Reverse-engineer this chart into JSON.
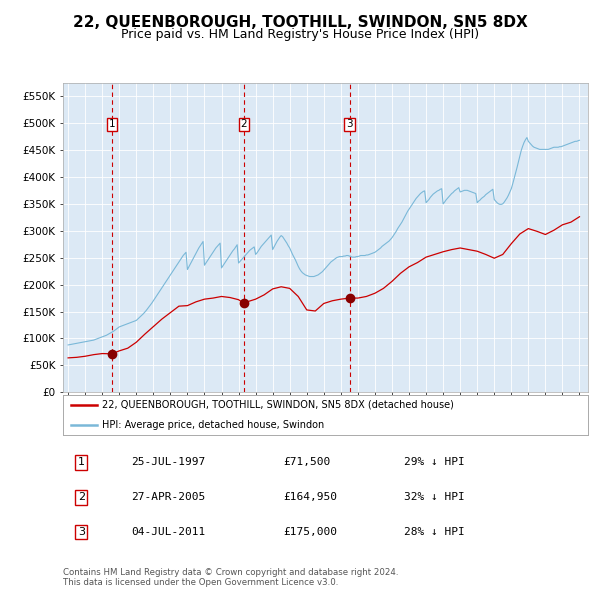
{
  "title": "22, QUEENBOROUGH, TOOTHILL, SWINDON, SN5 8DX",
  "subtitle": "Price paid vs. HM Land Registry's House Price Index (HPI)",
  "title_fontsize": 11,
  "subtitle_fontsize": 9,
  "bg_color": "#dce9f5",
  "fig_bg_color": "#ffffff",
  "ylim": [
    0,
    575000
  ],
  "yticks": [
    0,
    50000,
    100000,
    150000,
    200000,
    250000,
    300000,
    350000,
    400000,
    450000,
    500000,
    550000
  ],
  "ytick_labels": [
    "£0",
    "£50K",
    "£100K",
    "£150K",
    "£200K",
    "£250K",
    "£300K",
    "£350K",
    "£400K",
    "£450K",
    "£500K",
    "£550K"
  ],
  "xlim_start": 1994.7,
  "xlim_end": 2025.5,
  "xticks": [
    1995,
    1996,
    1997,
    1998,
    1999,
    2000,
    2001,
    2002,
    2003,
    2004,
    2005,
    2006,
    2007,
    2008,
    2009,
    2010,
    2011,
    2012,
    2013,
    2014,
    2015,
    2016,
    2017,
    2018,
    2019,
    2020,
    2021,
    2022,
    2023,
    2024,
    2025
  ],
  "hpi_color": "#7ab8d8",
  "price_color": "#cc0000",
  "marker_color": "#880000",
  "dashed_color": "#cc0000",
  "grid_color": "#ffffff",
  "annotation_box_color": "#cc0000",
  "sale_dates_decimal": [
    1997.56,
    2005.32,
    2011.51
  ],
  "sale_prices": [
    71500,
    164950,
    175000
  ],
  "sale_labels": [
    "1",
    "2",
    "3"
  ],
  "legend_label_price": "22, QUEENBOROUGH, TOOTHILL, SWINDON, SN5 8DX (detached house)",
  "legend_label_hpi": "HPI: Average price, detached house, Swindon",
  "table_rows": [
    [
      "1",
      "25-JUL-1997",
      "£71,500",
      "29% ↓ HPI"
    ],
    [
      "2",
      "27-APR-2005",
      "£164,950",
      "32% ↓ HPI"
    ],
    [
      "3",
      "04-JUL-2011",
      "£175,000",
      "28% ↓ HPI"
    ]
  ],
  "footer": "Contains HM Land Registry data © Crown copyright and database right 2024.\nThis data is licensed under the Open Government Licence v3.0.",
  "hpi_data": {
    "years": [
      1995.0,
      1995.083,
      1995.167,
      1995.25,
      1995.333,
      1995.417,
      1995.5,
      1995.583,
      1995.667,
      1995.75,
      1995.833,
      1995.917,
      1996.0,
      1996.083,
      1996.167,
      1996.25,
      1996.333,
      1996.417,
      1996.5,
      1996.583,
      1996.667,
      1996.75,
      1996.833,
      1996.917,
      1997.0,
      1997.083,
      1997.167,
      1997.25,
      1997.333,
      1997.417,
      1997.5,
      1997.583,
      1997.667,
      1997.75,
      1997.833,
      1997.917,
      1998.0,
      1998.083,
      1998.167,
      1998.25,
      1998.333,
      1998.417,
      1998.5,
      1998.583,
      1998.667,
      1998.75,
      1998.833,
      1998.917,
      1999.0,
      1999.083,
      1999.167,
      1999.25,
      1999.333,
      1999.417,
      1999.5,
      1999.583,
      1999.667,
      1999.75,
      1999.833,
      1999.917,
      2000.0,
      2000.083,
      2000.167,
      2000.25,
      2000.333,
      2000.417,
      2000.5,
      2000.583,
      2000.667,
      2000.75,
      2000.833,
      2000.917,
      2001.0,
      2001.083,
      2001.167,
      2001.25,
      2001.333,
      2001.417,
      2001.5,
      2001.583,
      2001.667,
      2001.75,
      2001.833,
      2001.917,
      2002.0,
      2002.083,
      2002.167,
      2002.25,
      2002.333,
      2002.417,
      2002.5,
      2002.583,
      2002.667,
      2002.75,
      2002.833,
      2002.917,
      2003.0,
      2003.083,
      2003.167,
      2003.25,
      2003.333,
      2003.417,
      2003.5,
      2003.583,
      2003.667,
      2003.75,
      2003.833,
      2003.917,
      2004.0,
      2004.083,
      2004.167,
      2004.25,
      2004.333,
      2004.417,
      2004.5,
      2004.583,
      2004.667,
      2004.75,
      2004.833,
      2004.917,
      2005.0,
      2005.083,
      2005.167,
      2005.25,
      2005.333,
      2005.417,
      2005.5,
      2005.583,
      2005.667,
      2005.75,
      2005.833,
      2005.917,
      2006.0,
      2006.083,
      2006.167,
      2006.25,
      2006.333,
      2006.417,
      2006.5,
      2006.583,
      2006.667,
      2006.75,
      2006.833,
      2006.917,
      2007.0,
      2007.083,
      2007.167,
      2007.25,
      2007.333,
      2007.417,
      2007.5,
      2007.583,
      2007.667,
      2007.75,
      2007.833,
      2007.917,
      2008.0,
      2008.083,
      2008.167,
      2008.25,
      2008.333,
      2008.417,
      2008.5,
      2008.583,
      2008.667,
      2008.75,
      2008.833,
      2008.917,
      2009.0,
      2009.083,
      2009.167,
      2009.25,
      2009.333,
      2009.417,
      2009.5,
      2009.583,
      2009.667,
      2009.75,
      2009.833,
      2009.917,
      2010.0,
      2010.083,
      2010.167,
      2010.25,
      2010.333,
      2010.417,
      2010.5,
      2010.583,
      2010.667,
      2010.75,
      2010.833,
      2010.917,
      2011.0,
      2011.083,
      2011.167,
      2011.25,
      2011.333,
      2011.417,
      2011.5,
      2011.583,
      2011.667,
      2011.75,
      2011.833,
      2011.917,
      2012.0,
      2012.083,
      2012.167,
      2012.25,
      2012.333,
      2012.417,
      2012.5,
      2012.583,
      2012.667,
      2012.75,
      2012.833,
      2012.917,
      2013.0,
      2013.083,
      2013.167,
      2013.25,
      2013.333,
      2013.417,
      2013.5,
      2013.583,
      2013.667,
      2013.75,
      2013.833,
      2013.917,
      2014.0,
      2014.083,
      2014.167,
      2014.25,
      2014.333,
      2014.417,
      2014.5,
      2014.583,
      2014.667,
      2014.75,
      2014.833,
      2014.917,
      2015.0,
      2015.083,
      2015.167,
      2015.25,
      2015.333,
      2015.417,
      2015.5,
      2015.583,
      2015.667,
      2015.75,
      2015.833,
      2015.917,
      2016.0,
      2016.083,
      2016.167,
      2016.25,
      2016.333,
      2016.417,
      2016.5,
      2016.583,
      2016.667,
      2016.75,
      2016.833,
      2016.917,
      2017.0,
      2017.083,
      2017.167,
      2017.25,
      2017.333,
      2017.417,
      2017.5,
      2017.583,
      2017.667,
      2017.75,
      2017.833,
      2017.917,
      2018.0,
      2018.083,
      2018.167,
      2018.25,
      2018.333,
      2018.417,
      2018.5,
      2018.583,
      2018.667,
      2018.75,
      2018.833,
      2018.917,
      2019.0,
      2019.083,
      2019.167,
      2019.25,
      2019.333,
      2019.417,
      2019.5,
      2019.583,
      2019.667,
      2019.75,
      2019.833,
      2019.917,
      2020.0,
      2020.083,
      2020.167,
      2020.25,
      2020.333,
      2020.417,
      2020.5,
      2020.583,
      2020.667,
      2020.75,
      2020.833,
      2020.917,
      2021.0,
      2021.083,
      2021.167,
      2021.25,
      2021.333,
      2021.417,
      2021.5,
      2021.583,
      2021.667,
      2021.75,
      2021.833,
      2021.917,
      2022.0,
      2022.083,
      2022.167,
      2022.25,
      2022.333,
      2022.417,
      2022.5,
      2022.583,
      2022.667,
      2022.75,
      2022.833,
      2022.917,
      2023.0,
      2023.083,
      2023.167,
      2023.25,
      2023.333,
      2023.417,
      2023.5,
      2023.583,
      2023.667,
      2023.75,
      2023.833,
      2023.917,
      2024.0,
      2024.083,
      2024.167,
      2024.25,
      2024.333,
      2024.417,
      2024.5,
      2024.583,
      2024.667,
      2024.75,
      2024.833,
      2024.917,
      2025.0
    ],
    "values": [
      88000,
      88500,
      89000,
      89500,
      90000,
      90500,
      91000,
      91500,
      92000,
      92500,
      93000,
      93500,
      94000,
      94500,
      95000,
      95500,
      96000,
      96500,
      97000,
      98000,
      99000,
      100000,
      101000,
      102000,
      103000,
      104000,
      105000,
      106000,
      107500,
      109000,
      110500,
      112000,
      113500,
      115500,
      117500,
      119500,
      121500,
      122500,
      123500,
      124500,
      125500,
      126500,
      127500,
      128500,
      129500,
      130500,
      131500,
      132500,
      133500,
      136000,
      138500,
      141000,
      143500,
      146000,
      149000,
      152000,
      155500,
      159000,
      162500,
      166000,
      170000,
      174000,
      178000,
      182000,
      186000,
      190000,
      194000,
      198000,
      202000,
      206000,
      210000,
      214000,
      218000,
      222000,
      226000,
      230000,
      234000,
      238000,
      242000,
      246000,
      250000,
      254000,
      257000,
      260000,
      228000,
      233000,
      238000,
      243000,
      248000,
      253000,
      258000,
      263000,
      268000,
      272000,
      276000,
      280000,
      236000,
      240000,
      244000,
      248000,
      252000,
      256000,
      260000,
      264000,
      268000,
      271000,
      274000,
      277000,
      231000,
      235000,
      239000,
      243000,
      247000,
      251000,
      255000,
      259000,
      263000,
      266000,
      270000,
      274000,
      240000,
      243000,
      246000,
      249000,
      252000,
      255000,
      258000,
      261000,
      264000,
      266000,
      268000,
      270000,
      256000,
      259000,
      263000,
      267000,
      271000,
      274000,
      277000,
      280000,
      283000,
      286000,
      289000,
      292000,
      265000,
      270000,
      275000,
      280000,
      284000,
      288000,
      291000,
      289000,
      285000,
      281000,
      277000,
      272000,
      268000,
      262000,
      256000,
      251000,
      246000,
      240000,
      234000,
      229000,
      225000,
      222000,
      220000,
      218000,
      217000,
      216000,
      215000,
      215000,
      215000,
      215000,
      216000,
      217000,
      218000,
      220000,
      222000,
      224000,
      227000,
      230000,
      233000,
      236000,
      239000,
      242000,
      244000,
      246000,
      248000,
      250000,
      251000,
      252000,
      252000,
      252000,
      253000,
      253000,
      254000,
      254000,
      253000,
      252000,
      251000,
      251000,
      251000,
      252000,
      252000,
      253000,
      254000,
      254000,
      254000,
      254000,
      255000,
      255000,
      256000,
      257000,
      258000,
      259000,
      260000,
      262000,
      264000,
      266000,
      268000,
      271000,
      273000,
      275000,
      277000,
      279000,
      281000,
      284000,
      287000,
      291000,
      295000,
      299000,
      304000,
      308000,
      312000,
      316000,
      321000,
      326000,
      331000,
      336000,
      340000,
      344000,
      348000,
      352000,
      356000,
      360000,
      363000,
      366000,
      369000,
      371000,
      373000,
      374000,
      352000,
      355000,
      358000,
      362000,
      365000,
      368000,
      370000,
      372000,
      374000,
      375000,
      377000,
      378000,
      350000,
      353000,
      357000,
      360000,
      363000,
      366000,
      369000,
      371000,
      374000,
      376000,
      378000,
      380000,
      372000,
      373000,
      374000,
      375000,
      375000,
      375000,
      374000,
      373000,
      372000,
      371000,
      370000,
      369000,
      352000,
      355000,
      357000,
      360000,
      362000,
      364000,
      367000,
      369000,
      371000,
      373000,
      375000,
      377000,
      358000,
      355000,
      352000,
      350000,
      349000,
      349000,
      350000,
      353000,
      357000,
      361000,
      366000,
      372000,
      378000,
      387000,
      397000,
      407000,
      417000,
      428000,
      439000,
      449000,
      457000,
      464000,
      469000,
      473000,
      466000,
      463000,
      460000,
      457000,
      455000,
      454000,
      453000,
      452000,
      451000,
      451000,
      451000,
      451000,
      451000,
      451000,
      451000,
      452000,
      453000,
      454000,
      455000,
      455000,
      455000,
      455000,
      456000,
      456000,
      457000,
      458000,
      459000,
      460000,
      461000,
      462000,
      463000,
      464000,
      465000,
      466000,
      466000,
      467000,
      468000
    ]
  },
  "price_data": {
    "years": [
      1995.0,
      1995.5,
      1996.0,
      1996.5,
      1997.0,
      1997.56,
      1998.0,
      1998.5,
      1999.0,
      1999.5,
      2000.0,
      2000.5,
      2001.0,
      2001.5,
      2002.0,
      2002.5,
      2003.0,
      2003.5,
      2004.0,
      2004.5,
      2005.0,
      2005.32,
      2005.5,
      2006.0,
      2006.5,
      2007.0,
      2007.5,
      2008.0,
      2008.5,
      2009.0,
      2009.5,
      2010.0,
      2010.5,
      2011.0,
      2011.51,
      2012.0,
      2012.5,
      2013.0,
      2013.5,
      2014.0,
      2014.5,
      2015.0,
      2015.5,
      2016.0,
      2016.5,
      2017.0,
      2017.5,
      2018.0,
      2018.5,
      2019.0,
      2019.5,
      2020.0,
      2020.5,
      2021.0,
      2021.5,
      2022.0,
      2022.5,
      2023.0,
      2023.5,
      2024.0,
      2024.5,
      2025.0
    ],
    "values": [
      64000,
      65000,
      67000,
      70000,
      72000,
      71500,
      77000,
      82000,
      93000,
      108000,
      122000,
      136000,
      148000,
      160000,
      161000,
      168000,
      173000,
      175000,
      178000,
      176000,
      172000,
      164950,
      168000,
      173000,
      181000,
      192000,
      196000,
      193000,
      178000,
      153000,
      151000,
      165000,
      170000,
      173000,
      175000,
      175000,
      178000,
      184000,
      193000,
      206000,
      221000,
      233000,
      241000,
      251000,
      256000,
      261000,
      265000,
      268000,
      265000,
      262000,
      256000,
      249000,
      256000,
      276000,
      294000,
      304000,
      299000,
      293000,
      301000,
      311000,
      316000,
      326000
    ]
  }
}
